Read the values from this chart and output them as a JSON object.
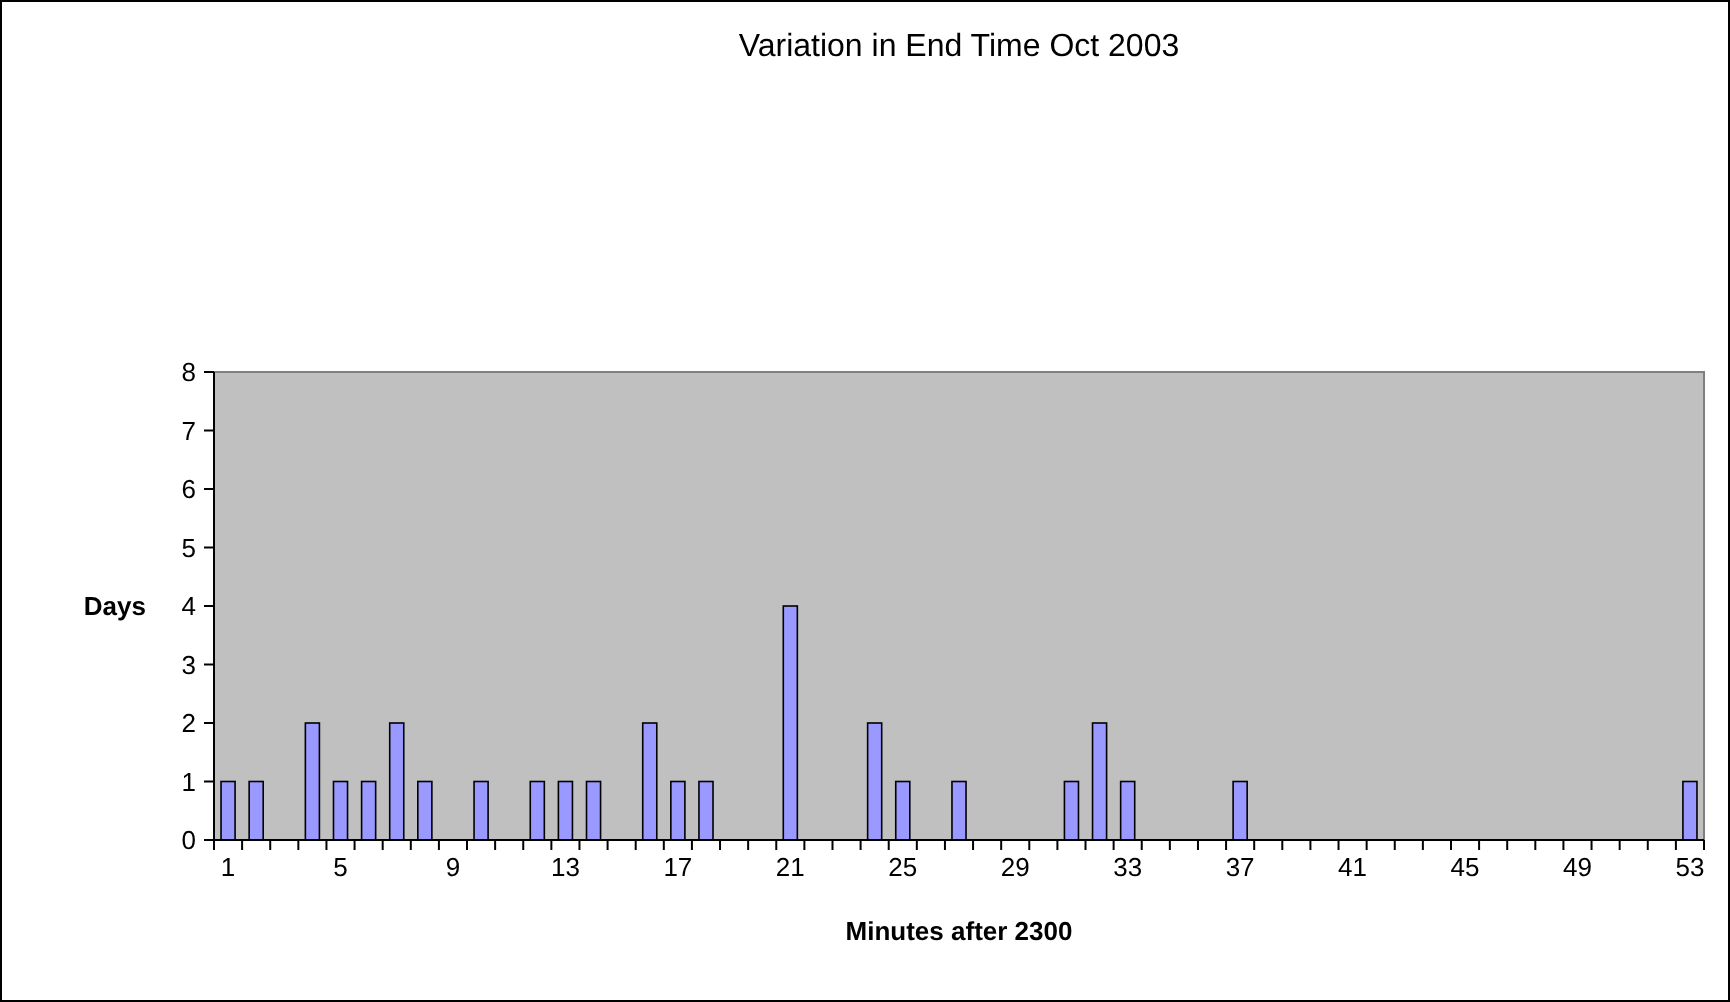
{
  "chart_data": {
    "type": "bar",
    "title": "Variation in End Time Oct 2003",
    "xlabel": "Minutes after 2300",
    "ylabel": "Days",
    "categories": [
      "1",
      null,
      null,
      null,
      "5",
      null,
      null,
      null,
      "9",
      null,
      null,
      null,
      "13",
      null,
      null,
      null,
      "17",
      null,
      null,
      null,
      "21",
      null,
      null,
      null,
      "25",
      null,
      null,
      null,
      "29",
      null,
      null,
      null,
      "33",
      null,
      null,
      null,
      "37",
      null,
      null,
      null,
      "41",
      null,
      null,
      null,
      "45",
      null,
      null,
      null,
      "49",
      null,
      null,
      null,
      "53"
    ],
    "values": [
      1,
      1,
      0,
      2,
      1,
      1,
      2,
      1,
      0,
      1,
      0,
      1,
      1,
      1,
      0,
      2,
      1,
      1,
      0,
      0,
      4,
      0,
      0,
      2,
      1,
      0,
      1,
      0,
      0,
      0,
      1,
      2,
      1,
      0,
      0,
      0,
      1,
      0,
      0,
      0,
      0,
      0,
      0,
      0,
      0,
      0,
      0,
      0,
      0,
      0,
      0,
      0,
      1
    ],
    "color": "#9999ff",
    "ylim": [
      0,
      8
    ],
    "yticks": [
      0,
      1,
      2,
      3,
      4,
      5,
      6,
      7,
      8
    ],
    "grid": false
  }
}
